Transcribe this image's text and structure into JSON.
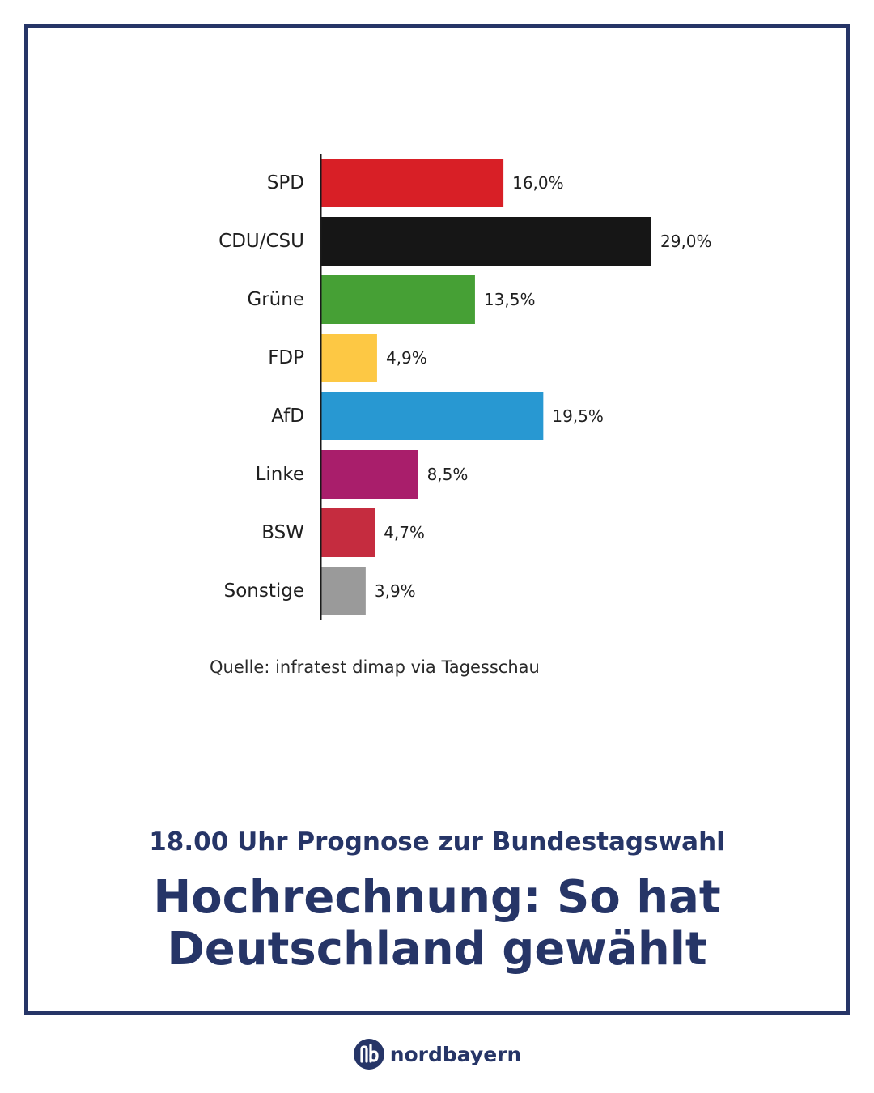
{
  "chart_data": {
    "type": "bar",
    "orientation": "horizontal",
    "categories": [
      "SPD",
      "CDU/CSU",
      "Grüne",
      "FDP",
      "AfD",
      "Linke",
      "BSW",
      "Sonstige"
    ],
    "values": [
      16.0,
      29.0,
      13.5,
      4.9,
      19.5,
      8.5,
      4.7,
      3.9
    ],
    "value_labels": [
      "16,0%",
      "29,0%",
      "13,5%",
      "4,9%",
      "19,5%",
      "8,5%",
      "4,7%",
      "3,9%"
    ],
    "colors": [
      "#d81f26",
      "#161616",
      "#46a035",
      "#fdc844",
      "#2898d2",
      "#a91e6b",
      "#c52c3f",
      "#9a9a9a"
    ],
    "xlim": [
      0,
      29.0
    ],
    "grid": false,
    "legend": "none",
    "source": "Quelle: infratest dimap via Tagesschau"
  },
  "header": {
    "subtitle": "18.00 Uhr Prognose zur Bundestagswahl",
    "title_line1": "Hochrechnung: So hat",
    "title_line2": "Deutschland gewählt"
  },
  "brand": {
    "name": "nordbayern",
    "logo_icon": "nb-logo-icon",
    "color": "#263567"
  }
}
